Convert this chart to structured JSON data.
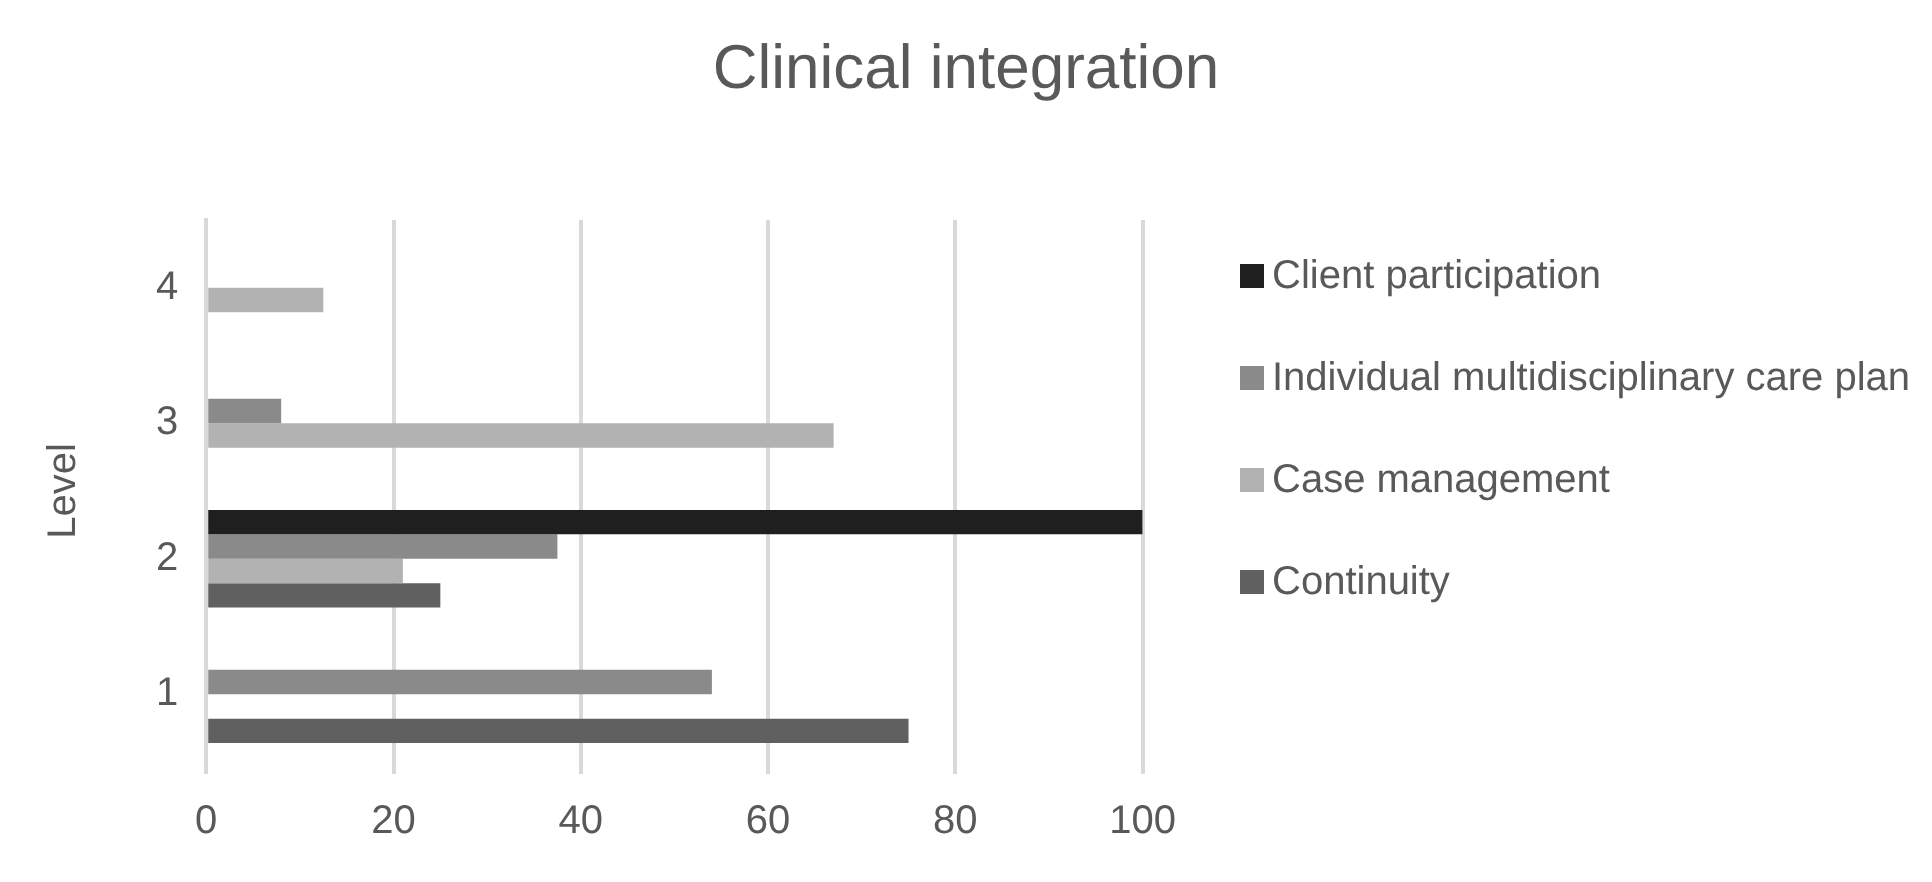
{
  "chart_data": {
    "type": "bar",
    "orientation": "horizontal",
    "title": "Clinical integration",
    "ylabel": "Level",
    "categories": [
      "4",
      "3",
      "2",
      "1"
    ],
    "series": [
      {
        "name": "Client participation",
        "color": "#1f1f1f",
        "values": [
          null,
          null,
          100,
          null
        ]
      },
      {
        "name": "Individual multidisciplinary care plan",
        "color": "#8a8a8a",
        "values": [
          null,
          8,
          37.5,
          54
        ]
      },
      {
        "name": "Case management",
        "color": "#b2b2b2",
        "values": [
          12.5,
          67,
          21,
          null
        ]
      },
      {
        "name": "Continuity",
        "color": "#606060",
        "values": [
          null,
          null,
          25,
          75
        ]
      }
    ],
    "xlim": [
      0,
      100
    ],
    "xticks": [
      0,
      20,
      40,
      60,
      80,
      100
    ],
    "grid": "x",
    "legend": "right"
  }
}
